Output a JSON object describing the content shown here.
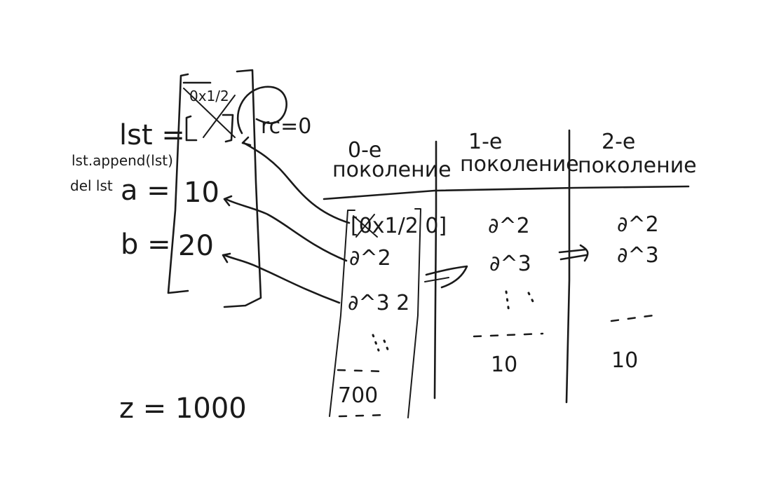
{
  "left_panel": {
    "lst_label": "lst =",
    "lst_value": "[ ]",
    "lst_address": "0x1/2",
    "refcount": "rc=0",
    "append_code": "lst.append(lst)",
    "del_code": "del lst",
    "a_label": "a =",
    "a_value": "10",
    "b_label": "b =",
    "b_value": "20",
    "z_expr": "z = 1000"
  },
  "table": {
    "columns": [
      {
        "line1": "0-e",
        "line2": "поколение"
      },
      {
        "line1": "1-e",
        "line2": "поколение"
      },
      {
        "line1": "2-e",
        "line2": "поколение"
      }
    ],
    "col0": {
      "row1": "[0x1/2 0]",
      "row2": "∂^2",
      "row3": "∂^3 2",
      "row_last": "700"
    },
    "col1": {
      "row1": "∂^2",
      "row2": "∂^3",
      "row_last": "10"
    },
    "col2": {
      "row1": "∂^2",
      "row2": "∂^3",
      "row_last": "10"
    }
  },
  "icons": {
    "transfer_arrow_1": "double-arrow-right",
    "transfer_arrow_2": "double-arrow-right"
  }
}
